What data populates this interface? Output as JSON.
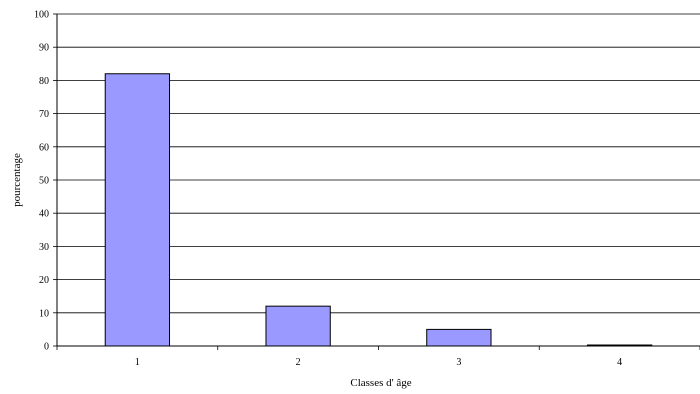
{
  "chart_data": {
    "type": "bar",
    "categories": [
      "1",
      "2",
      "3",
      "4"
    ],
    "values": [
      82,
      12,
      5,
      0.3
    ],
    "title": "",
    "xlabel": "Classes d' âge",
    "ylabel": "pourcentage",
    "ylim": [
      0,
      100
    ],
    "yticks": [
      0,
      10,
      20,
      30,
      40,
      50,
      60,
      70,
      80,
      90,
      100
    ],
    "grid": true,
    "legend": "none",
    "colors": {
      "bar_fill": "#9999ff",
      "bar_stroke": "#000000",
      "grid": "#000000"
    }
  }
}
